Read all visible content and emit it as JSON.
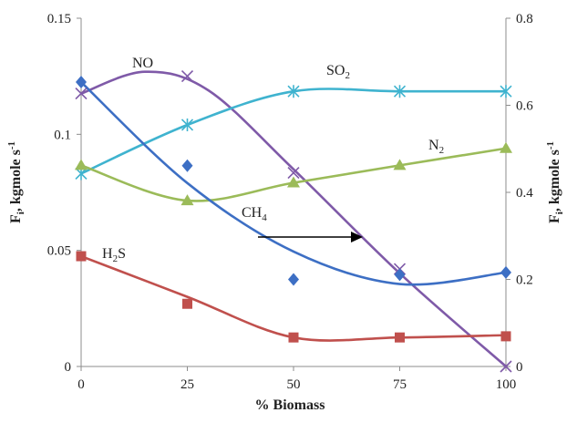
{
  "chart_data": {
    "type": "scatter",
    "xlabel": "% Biomass",
    "ylabel_left": "F",
    "ylabel_left_sub": "i",
    "ylabel_left_rest": ", kgmole s",
    "ylabel_left_sup": "-1",
    "ylabel_right": "F",
    "ylabel_right_sub": "i",
    "ylabel_right_rest": ", kgmole s",
    "ylabel_right_sup": "-1",
    "x": [
      0,
      25,
      50,
      75,
      100
    ],
    "x_ticks": [
      "0",
      "25",
      "50",
      "75",
      "100"
    ],
    "y_left_ticks": [
      "0",
      "0.05",
      "0.1",
      "0.15"
    ],
    "y_right_ticks": [
      "0",
      "0.2",
      "0.4",
      "0.6",
      "0.8"
    ],
    "xlim": [
      0,
      100
    ],
    "ylim_left": [
      0,
      0.15
    ],
    "ylim_right": [
      0,
      0.8
    ],
    "grid": false,
    "series": [
      {
        "name": "NO",
        "label_parts": [
          "NO"
        ],
        "axis": "right",
        "marker": "x",
        "color": "#7f5aa8",
        "values": [
          0.627,
          0.667,
          0.445,
          0.224,
          0.0
        ],
        "curve": [
          0.628,
          0.677,
          0.634,
          0.453,
          0.214,
          0.0
        ]
      },
      {
        "name": "SO2",
        "label_parts": [
          "SO",
          "2"
        ],
        "axis": "right",
        "marker": "asterisk",
        "color": "#3fb3cf",
        "values": [
          0.443,
          0.555,
          0.632,
          0.632,
          0.632
        ],
        "curve": null
      },
      {
        "name": "N2",
        "label_parts": [
          "N",
          "2"
        ],
        "axis": "right",
        "marker": "triangle",
        "color": "#9bbb59",
        "values": [
          0.462,
          0.381,
          0.422,
          0.462,
          0.501
        ],
        "curve": null
      },
      {
        "name": "CH4",
        "label_parts": [
          "CH",
          "4"
        ],
        "axis": "left",
        "marker": "diamond",
        "color": "#3d6fc4",
        "values": [
          0.1225,
          0.0865,
          0.0375,
          0.0395,
          0.0405
        ],
        "curve": null
      },
      {
        "name": "H2S",
        "label_parts": [
          "H",
          "2",
          "S"
        ],
        "axis": "left",
        "marker": "square",
        "color": "#c0504d",
        "values": [
          0.0475,
          0.027,
          0.0125,
          0.0125,
          0.013
        ],
        "curve": null
      }
    ]
  }
}
